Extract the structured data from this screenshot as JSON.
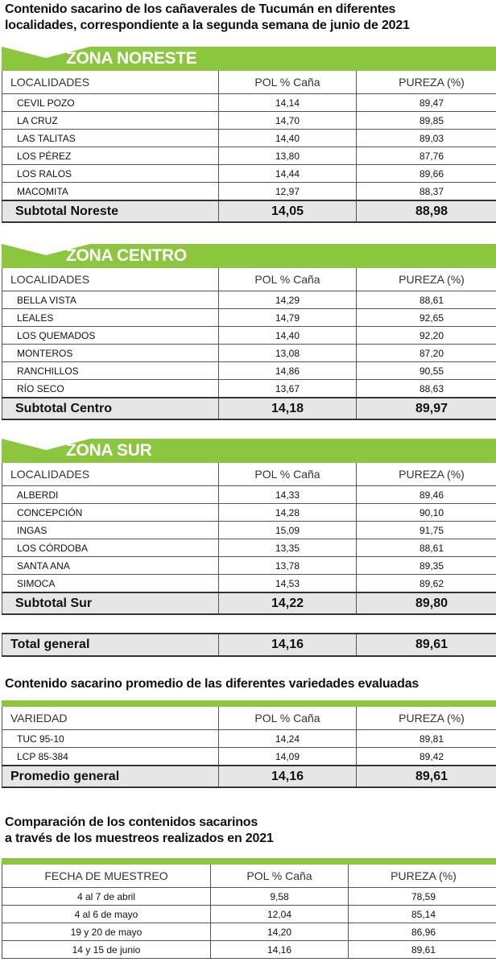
{
  "title": {
    "line1": "Contenido sacarino de los cañaverales de Tucumán en diferentes",
    "line2": "localidades, correspondiente a la segunda semana de junio de 2021"
  },
  "columns": {
    "loc": "LOCALIDADES",
    "pol": "POL % Caña",
    "pureza": "PUREZA (%)"
  },
  "zones": [
    {
      "name": "ZONA NORESTE",
      "rows": [
        {
          "loc": "CEVIL POZO",
          "pol": "14,14",
          "pureza": "89,47"
        },
        {
          "loc": "LA CRUZ",
          "pol": "14,70",
          "pureza": "89,85"
        },
        {
          "loc": "LAS TALITAS",
          "pol": "14,40",
          "pureza": "89,03"
        },
        {
          "loc": "LOS PÉREZ",
          "pol": "13,80",
          "pureza": "87,76"
        },
        {
          "loc": "LOS RALOS",
          "pol": "14,44",
          "pureza": "89,66"
        },
        {
          "loc": "MACOMITA",
          "pol": "12,97",
          "pureza": "88,37"
        }
      ],
      "subtotal": {
        "label": "Subtotal Noreste",
        "pol": "14,05",
        "pureza": "88,98"
      }
    },
    {
      "name": "ZONA CENTRO",
      "rows": [
        {
          "loc": "BELLA VISTA",
          "pol": "14,29",
          "pureza": "88,61"
        },
        {
          "loc": "LEALES",
          "pol": "14,79",
          "pureza": "92,65"
        },
        {
          "loc": "LOS QUEMADOS",
          "pol": "14,40",
          "pureza": "92,20"
        },
        {
          "loc": "MONTEROS",
          "pol": "13,08",
          "pureza": "87,20"
        },
        {
          "loc": "RANCHILLOS",
          "pol": "14,86",
          "pureza": "90,55"
        },
        {
          "loc": "RÍO SECO",
          "pol": "13,67",
          "pureza": "88,63"
        }
      ],
      "subtotal": {
        "label": "Subtotal Centro",
        "pol": "14,18",
        "pureza": "89,97"
      }
    },
    {
      "name": "ZONA SUR",
      "rows": [
        {
          "loc": "ALBERDI",
          "pol": "14,33",
          "pureza": "89,46"
        },
        {
          "loc": "CONCEPCIÓN",
          "pol": "14,28",
          "pureza": "90,10"
        },
        {
          "loc": "INGAS",
          "pol": "15,09",
          "pureza": "91,75"
        },
        {
          "loc": "LOS CÓRDOBA",
          "pol": "13,35",
          "pureza": "88,61"
        },
        {
          "loc": "SANTA ANA",
          "pol": "13,78",
          "pureza": "89,35"
        },
        {
          "loc": "SIMOCA",
          "pol": "14,53",
          "pureza": "89,62"
        }
      ],
      "subtotal": {
        "label": "Subtotal Sur",
        "pol": "14,22",
        "pureza": "89,80"
      }
    }
  ],
  "total": {
    "label": "Total general",
    "pol": "14,16",
    "pureza": "89,61"
  },
  "varieties": {
    "title": "Contenido sacarino promedio de las diferentes variedades evaluadas",
    "header": {
      "col1": "VARIEDAD",
      "pol": "POL % Caña",
      "pureza": "PUREZA (%)"
    },
    "rows": [
      {
        "name": "TUC 95-10",
        "pol": "14,24",
        "pureza": "89,81"
      },
      {
        "name": "LCP 85-384",
        "pol": "14,09",
        "pureza": "89,42"
      }
    ],
    "average": {
      "label": "Promedio general",
      "pol": "14,16",
      "pureza": "89,61"
    }
  },
  "comparison": {
    "title_line1": "Comparación de los contenidos sacarinos",
    "title_line2": "a través de los muestreos realizados en 2021",
    "header": {
      "col1": "FECHA DE MUESTREO",
      "pol": "POL % Caña",
      "pureza": "PUREZA (%)"
    },
    "rows": [
      {
        "fecha": "4 al 7 de abril",
        "pol": "9,58",
        "pureza": "78,59"
      },
      {
        "fecha": "4 al 6 de mayo",
        "pol": "12,04",
        "pureza": "85,14"
      },
      {
        "fecha": "19 y 20 de mayo",
        "pol": "14,20",
        "pureza": "86,96"
      },
      {
        "fecha": "14 y 15 de junio",
        "pol": "14,16",
        "pureza": "89,61"
      }
    ]
  },
  "colors": {
    "accent_green": "#8cc63f",
    "subtotal_gray": "#e6e6e6"
  }
}
